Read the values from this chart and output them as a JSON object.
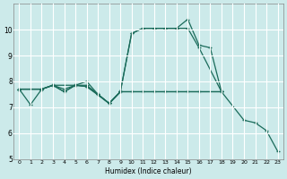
{
  "xlabel": "Humidex (Indice chaleur)",
  "bg_color": "#cceaea",
  "grid_color": "#ffffff",
  "line_color": "#1a6b5a",
  "xlim": [
    -0.5,
    23.5
  ],
  "ylim": [
    5,
    11
  ],
  "yticks": [
    5,
    6,
    7,
    8,
    9,
    10
  ],
  "xticks": [
    0,
    1,
    2,
    3,
    4,
    5,
    6,
    7,
    8,
    9,
    10,
    11,
    12,
    13,
    14,
    15,
    16,
    17,
    18,
    19,
    20,
    21,
    22,
    23
  ],
  "series": [
    {
      "x": [
        0,
        1,
        2,
        3,
        4,
        5,
        6,
        7,
        8,
        9,
        10,
        11,
        12,
        13,
        14,
        15,
        16,
        17,
        18
      ],
      "y": [
        7.7,
        7.1,
        7.7,
        7.85,
        7.7,
        7.85,
        8.0,
        7.5,
        7.15,
        7.6,
        9.85,
        10.05,
        10.05,
        10.05,
        10.05,
        10.4,
        9.4,
        9.3,
        7.6
      ]
    },
    {
      "x": [
        0,
        2,
        3,
        5,
        6,
        7,
        8,
        9,
        10,
        11,
        12,
        13,
        14,
        15,
        16,
        18
      ],
      "y": [
        7.7,
        7.7,
        7.85,
        7.85,
        7.85,
        7.5,
        7.15,
        7.6,
        9.85,
        10.05,
        10.05,
        10.05,
        10.05,
        10.05,
        9.3,
        7.6
      ]
    },
    {
      "x": [
        0,
        2,
        3,
        4,
        5,
        6,
        8,
        9,
        10,
        11,
        12,
        13,
        14,
        15,
        16,
        18
      ],
      "y": [
        7.7,
        7.7,
        7.85,
        7.6,
        7.85,
        7.8,
        7.15,
        7.6,
        7.6,
        7.6,
        7.6,
        7.6,
        7.6,
        7.6,
        7.6,
        7.6
      ]
    },
    {
      "x": [
        0,
        2,
        3,
        4,
        5,
        6,
        7,
        8,
        9,
        18,
        20,
        21,
        22,
        23
      ],
      "y": [
        7.7,
        7.7,
        7.85,
        7.6,
        7.85,
        7.8,
        7.5,
        7.15,
        7.6,
        7.6,
        6.5,
        6.4,
        6.1,
        5.3
      ]
    }
  ]
}
